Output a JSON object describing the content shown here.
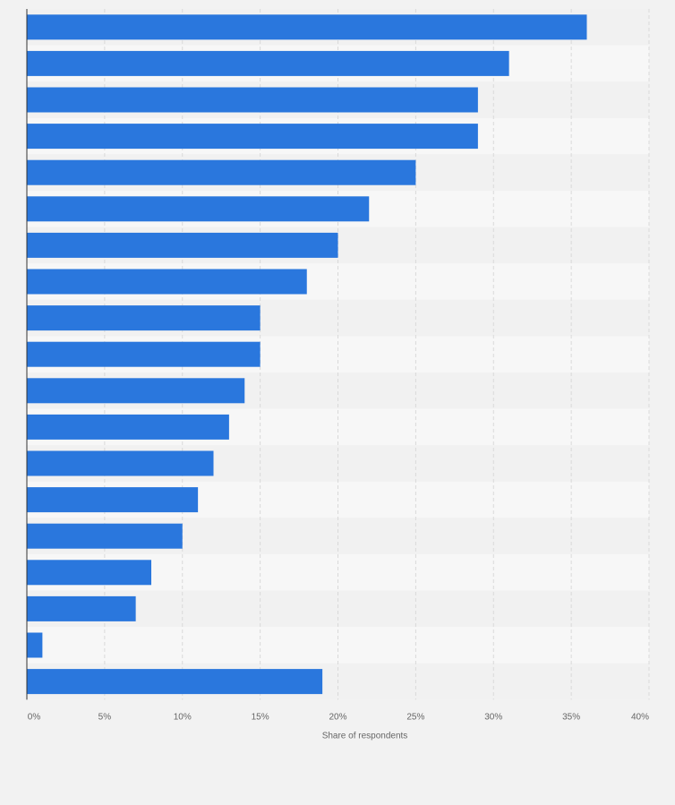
{
  "chart_data": {
    "type": "bar",
    "orientation": "horizontal",
    "title": "",
    "xlabel": "Share of respondents",
    "ylabel": "",
    "xlim": [
      0,
      40
    ],
    "x_ticks": [
      "0%",
      "5%",
      "10%",
      "15%",
      "20%",
      "25%",
      "30%",
      "35%",
      "40%"
    ],
    "grid": true,
    "categories": [
      "",
      "",
      "",
      "",
      "",
      "",
      "",
      "",
      "",
      "",
      "",
      "",
      "",
      "",
      "",
      "",
      "",
      "",
      ""
    ],
    "values": [
      36,
      31,
      29,
      29,
      25,
      22,
      20,
      18,
      15,
      15,
      14,
      13,
      12,
      11,
      10,
      8,
      7,
      1,
      19
    ],
    "unit": "%"
  },
  "colors": {
    "bar": "#2a77dd",
    "background": "#f2f2f2",
    "band_light": "#f7f7f7",
    "band_dark": "#f1f1f1",
    "grid": "#d9d9d9",
    "axis": "#333333",
    "text": "#666666"
  }
}
